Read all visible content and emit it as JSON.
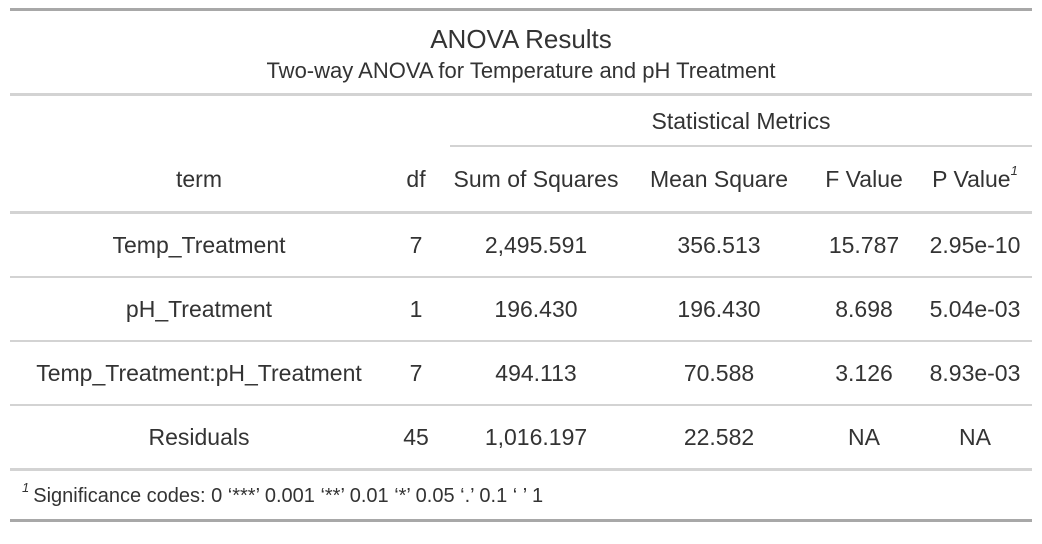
{
  "table": {
    "title": "ANOVA Results",
    "subtitle": "Two-way ANOVA for Temperature and pH Treatment",
    "spanner": "Statistical Metrics",
    "columns": {
      "term": "term",
      "df": "df",
      "sum_sq": "Sum of Squares",
      "mean_sq": "Mean Square",
      "f_value": "F Value",
      "p_value": "P Value",
      "p_value_mark": "1"
    },
    "rows": [
      {
        "term": "Temp_Treatment",
        "df": "7",
        "sum_sq": "2,495.591",
        "mean_sq": "356.513",
        "f_value": "15.787",
        "p_value": "2.95e-10"
      },
      {
        "term": "pH_Treatment",
        "df": "1",
        "sum_sq": "196.430",
        "mean_sq": "196.430",
        "f_value": "8.698",
        "p_value": "5.04e-03"
      },
      {
        "term": "Temp_Treatment:pH_Treatment",
        "df": "7",
        "sum_sq": "494.113",
        "mean_sq": "70.588",
        "f_value": "3.126",
        "p_value": "8.93e-03"
      },
      {
        "term": "Residuals",
        "df": "45",
        "sum_sq": "1,016.197",
        "mean_sq": "22.582",
        "f_value": "NA",
        "p_value": "NA"
      }
    ],
    "footnote_mark": "1",
    "footnote": "Significance codes: 0 ‘***’ 0.001 ‘**’ 0.01 ‘*’ 0.05 ‘.’ 0.1 ‘ ’ 1"
  }
}
